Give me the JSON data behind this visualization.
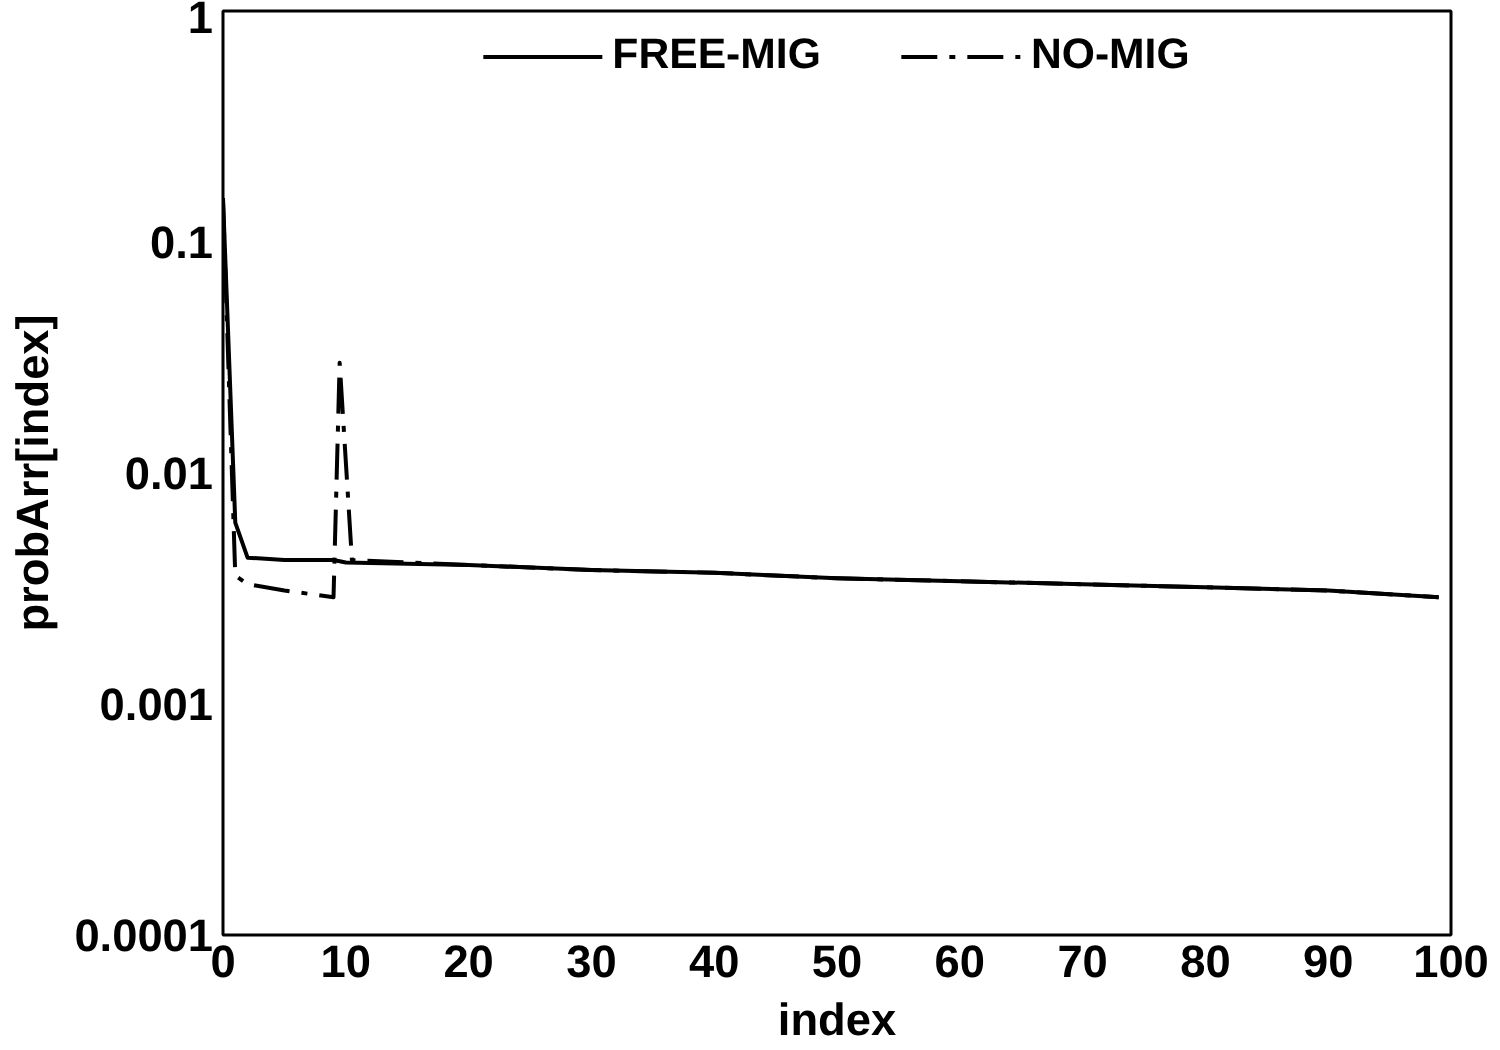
{
  "chart_data": {
    "type": "line",
    "xlabel": "index",
    "ylabel": "probArr[index]",
    "log": "y",
    "xlim": [
      0,
      100
    ],
    "xticks": [
      0,
      10,
      20,
      30,
      40,
      50,
      60,
      70,
      80,
      90,
      100
    ],
    "ylim": [
      0.0001,
      1
    ],
    "yticks": [
      0.0001,
      0.001,
      0.01,
      0.1,
      1
    ],
    "legend": "top",
    "grid": false,
    "series": [
      {
        "name": "FREE-MIG",
        "color": "#000000",
        "line_style": "solid",
        "x": [
          0,
          1,
          2,
          5,
          9,
          10,
          20,
          30,
          40,
          50,
          60,
          70,
          80,
          90,
          99
        ],
        "values": [
          0.155,
          0.0061,
          0.0043,
          0.0042,
          0.0042,
          0.0041,
          0.004,
          0.0038,
          0.0037,
          0.0035,
          0.0034,
          0.0033,
          0.0032,
          0.0031,
          0.0029
        ]
      },
      {
        "name": "NO-MIG",
        "color": "#000000",
        "line_style": "dashdot",
        "x": [
          0,
          1,
          2,
          5,
          9,
          9.5,
          10.5,
          20,
          30,
          40,
          50,
          60,
          70,
          80,
          90,
          99
        ],
        "values": [
          0.15,
          0.0036,
          0.0033,
          0.0031,
          0.0029,
          0.03,
          0.0042,
          0.004,
          0.0038,
          0.0037,
          0.0035,
          0.0034,
          0.0033,
          0.0032,
          0.0031,
          0.0029
        ]
      }
    ]
  }
}
